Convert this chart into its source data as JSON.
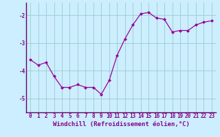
{
  "x": [
    0,
    1,
    2,
    3,
    4,
    5,
    6,
    7,
    8,
    9,
    10,
    11,
    12,
    13,
    14,
    15,
    16,
    17,
    18,
    19,
    20,
    21,
    22,
    23
  ],
  "y": [
    -3.6,
    -3.8,
    -3.7,
    -4.2,
    -4.6,
    -4.6,
    -4.5,
    -4.6,
    -4.6,
    -4.85,
    -4.35,
    -3.45,
    -2.85,
    -2.35,
    -1.95,
    -1.9,
    -2.1,
    -2.15,
    -2.6,
    -2.55,
    -2.55,
    -2.35,
    -2.25,
    -2.2
  ],
  "line_color": "#990099",
  "marker": "D",
  "marker_size": 2.0,
  "bg_color": "#cceeff",
  "grid_color": "#99cccc",
  "xlabel": "Windchill (Refroidissement éolien,°C)",
  "xlabel_fontsize": 6.5,
  "tick_fontsize": 5.5,
  "ytick_labels": [
    "-5",
    "-4",
    "-3",
    "-2"
  ],
  "yticks": [
    -5,
    -4,
    -3,
    -2
  ],
  "ylim": [
    -5.5,
    -1.55
  ],
  "xlim": [
    -0.5,
    23.5
  ],
  "label_color": "#880088",
  "spine_color": "#884488",
  "bottom_spine_color": "#660066"
}
